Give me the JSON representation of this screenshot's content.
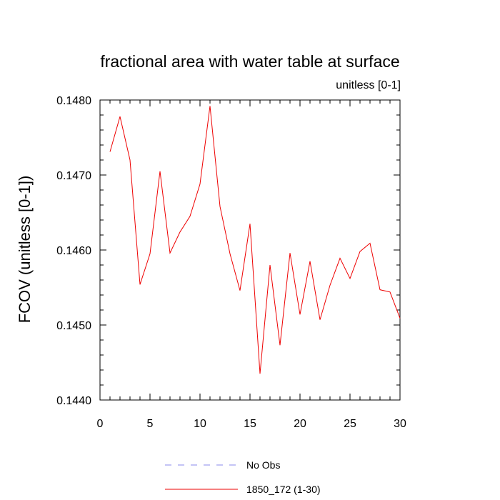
{
  "chart_data": {
    "type": "line",
    "title": "fractional area with water table at surface",
    "subtitle": "unitless [0-1]",
    "xlabel": "",
    "ylabel": "FCOV  (unitless [0-1])",
    "xlim": [
      0,
      30
    ],
    "ylim": [
      0.144,
      0.148
    ],
    "xticks": [
      0,
      5,
      10,
      15,
      20,
      25,
      30
    ],
    "yticks": [
      0.144,
      0.145,
      0.146,
      0.147,
      0.148
    ],
    "ytick_labels": [
      "0.1440",
      "0.1450",
      "0.1460",
      "0.1470",
      "0.1480"
    ],
    "grid": false,
    "legend_position": "bottom",
    "series": [
      {
        "name": "No Obs",
        "color": "#8888ee",
        "dash": "dashed",
        "values": []
      },
      {
        "name": "1850_172 (1-30)",
        "color": "#ee0000",
        "dash": "solid",
        "x": [
          1,
          2,
          3,
          4,
          5,
          6,
          7,
          8,
          9,
          10,
          11,
          12,
          13,
          14,
          15,
          16,
          17,
          18,
          19,
          20,
          21,
          22,
          23,
          24,
          25,
          26,
          27,
          28,
          29,
          30
        ],
        "values": [
          0.14731,
          0.14778,
          0.1472,
          0.14554,
          0.14595,
          0.14705,
          0.14596,
          0.14624,
          0.14645,
          0.14688,
          0.14792,
          0.14658,
          0.14595,
          0.14546,
          0.14635,
          0.14435,
          0.1458,
          0.14473,
          0.14596,
          0.14514,
          0.14585,
          0.14507,
          0.14553,
          0.14589,
          0.14562,
          0.14598,
          0.14609,
          0.14547,
          0.14544,
          0.14509
        ]
      }
    ]
  }
}
